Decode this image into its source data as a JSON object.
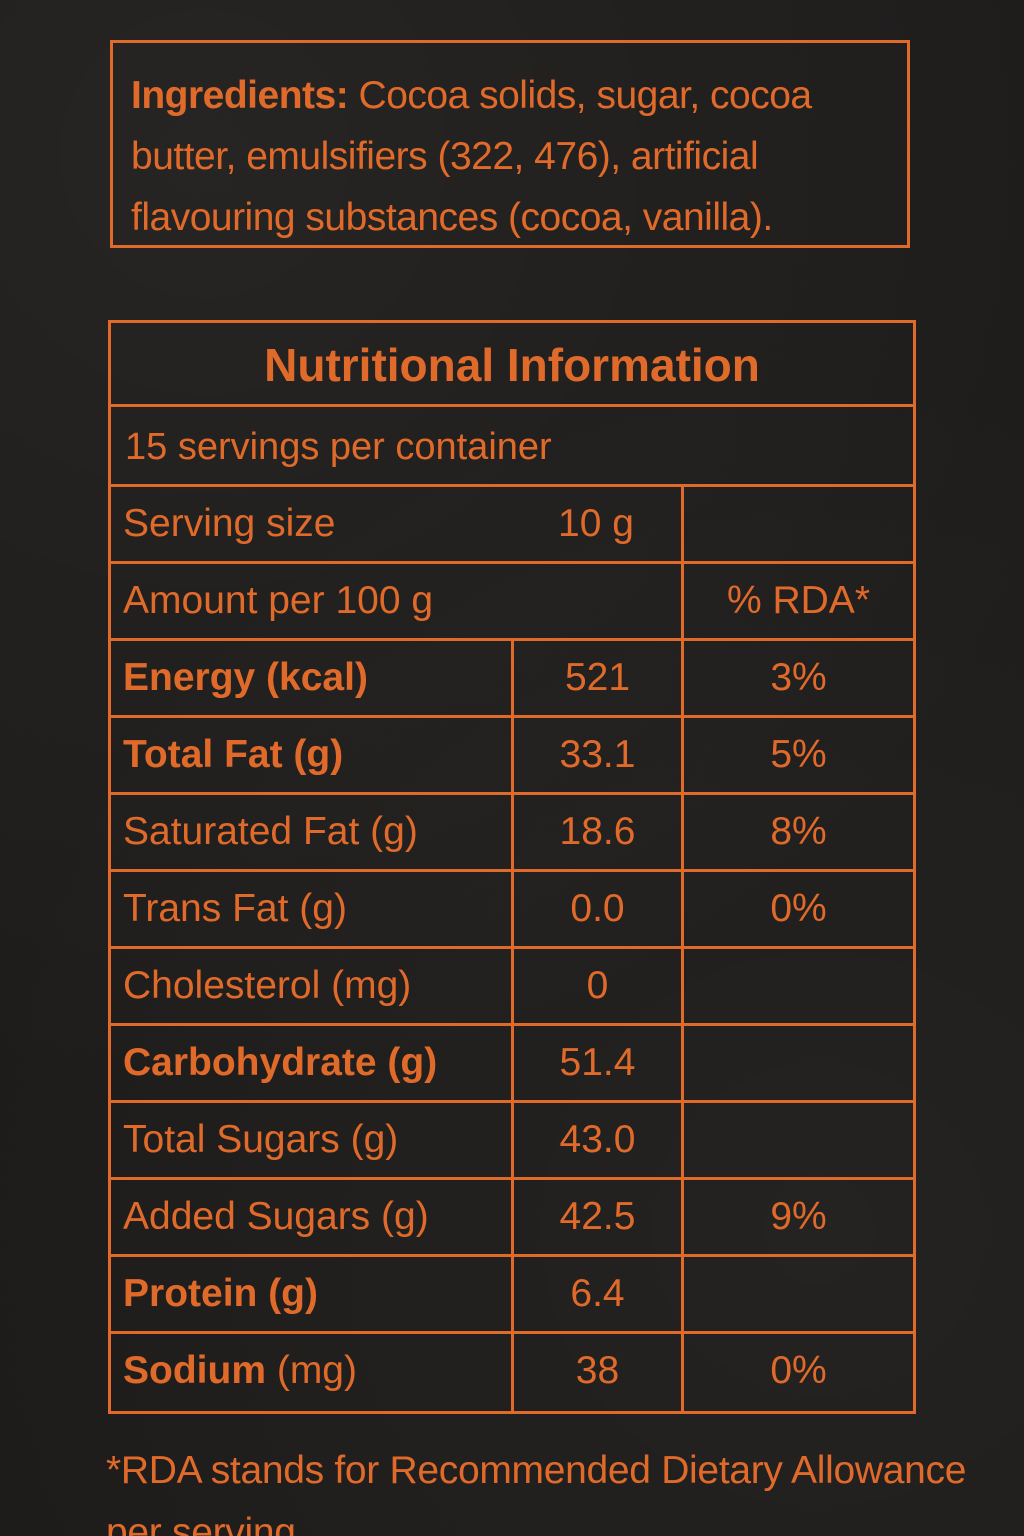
{
  "ingredients": {
    "lead": "Ingredients:",
    "text": " Cocoa solids, sugar, cocoa butter, emulsifiers (322, 476), artificial flavouring substances (cocoa, vanilla)."
  },
  "nutrition": {
    "title": "Nutritional Information",
    "servings_per_container": "15 servings per container",
    "serving_size_label": "Serving size",
    "serving_size_value": "10 g",
    "amount_label": "Amount per 100 g",
    "rda_header": "% RDA*",
    "rows": [
      {
        "label": "Energy (kcal)",
        "bold": true,
        "value": "521",
        "rda": "3%"
      },
      {
        "label": "Total Fat (g)",
        "bold": true,
        "value": "33.1",
        "rda": "5%"
      },
      {
        "label": "Saturated Fat (g)",
        "bold": false,
        "value": "18.6",
        "rda": "8%"
      },
      {
        "label": "Trans Fat (g)",
        "bold": false,
        "value": "0.0",
        "rda": "0%"
      },
      {
        "label": "Cholesterol (mg)",
        "bold": false,
        "value": "0",
        "rda": ""
      },
      {
        "label": "Carbohydrate (g)",
        "bold": true,
        "value": "51.4",
        "rda": ""
      },
      {
        "label": "Total Sugars (g)",
        "bold": false,
        "value": "43.0",
        "rda": ""
      },
      {
        "label": "Added Sugars (g)",
        "bold": false,
        "value": "42.5",
        "rda": "9%"
      },
      {
        "label": "Protein (g)",
        "bold": true,
        "value": "6.4",
        "rda": ""
      },
      {
        "label_bold": "Sodium",
        "label_rest": " (mg)",
        "value": "38",
        "rda": "0%"
      }
    ]
  },
  "footnote": "*RDA stands for Recommended Dietary Allowance per serving",
  "colors": {
    "ink": "#e06a2a",
    "background": "#1e1c1b"
  }
}
